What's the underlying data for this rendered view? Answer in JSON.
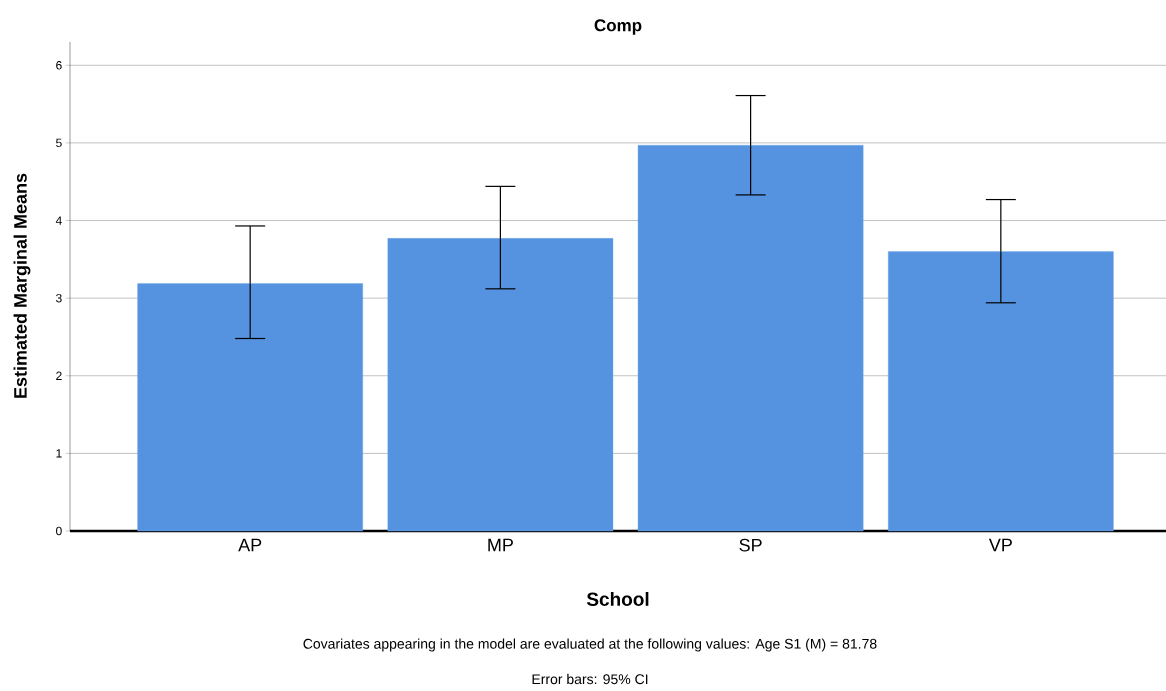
{
  "chart_data": {
    "type": "bar",
    "title": "Comp",
    "xlabel": "School",
    "ylabel": "Estimated Marginal Means",
    "categories": [
      "AP",
      "MP",
      "SP",
      "VP"
    ],
    "values": [
      3.19,
      3.77,
      4.97,
      3.6
    ],
    "errors": [
      [
        2.48,
        3.93
      ],
      [
        3.12,
        4.44
      ],
      [
        4.33,
        5.61
      ],
      [
        2.94,
        4.27
      ]
    ],
    "color": "#5593e0",
    "ylim": [
      0,
      6.3
    ],
    "yticks": [
      0,
      1,
      2,
      3,
      4,
      5,
      6
    ],
    "grid": "y",
    "annotations": [
      "Covariates appearing in the model are evaluated at the following values: Age S1 (M) = 81.78",
      "Error bars: 95% CI"
    ]
  }
}
